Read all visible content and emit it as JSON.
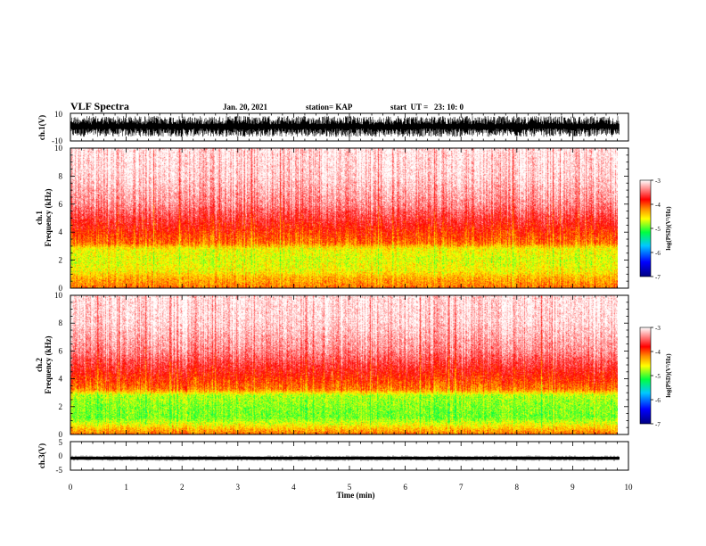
{
  "header": {
    "title": "VLF Spectra",
    "date": "Jan. 20, 2021",
    "station": "station= KAP",
    "start": "start  UT =   23: 10: 0"
  },
  "chart_data": [
    {
      "type": "line",
      "panel": "ch1-waveform",
      "ylabel": "ch.1(V)",
      "ylim": [
        -10,
        10
      ],
      "y_ticks": [
        "10",
        "-10"
      ],
      "x": [
        0,
        9.84
      ],
      "approx_envelope": [
        -7,
        8
      ],
      "color": "#000000"
    },
    {
      "type": "heatmap",
      "panel": "ch1-spectrogram",
      "ylabel": [
        "ch.1",
        "Frequency (kHz)"
      ],
      "ylim": [
        0,
        10
      ],
      "y_ticks": [
        "0",
        "2",
        "4",
        "6",
        "8",
        "10"
      ],
      "x_range": [
        0,
        9.84
      ],
      "level_profile_khz": [
        {
          "f": 0.0,
          "level": -4.1
        },
        {
          "f": 0.3,
          "level": -4.2
        },
        {
          "f": 0.7,
          "level": -4.3
        },
        {
          "f": 1.2,
          "level": -4.55
        },
        {
          "f": 2.0,
          "level": -4.65
        },
        {
          "f": 2.8,
          "level": -4.55
        },
        {
          "f": 3.2,
          "level": -4.1
        },
        {
          "f": 3.8,
          "level": -3.95
        },
        {
          "f": 4.5,
          "level": -3.75
        },
        {
          "f": 6.0,
          "level": -3.35
        },
        {
          "f": 8.0,
          "level": -3.1
        },
        {
          "f": 10.0,
          "level": -3.05
        }
      ],
      "colorbar": {
        "label": "log(PSD)(V²/Hz)",
        "range": [
          -7,
          -3
        ],
        "ticks": [
          "-3",
          "-4",
          "-5",
          "-6",
          "-7"
        ]
      }
    },
    {
      "type": "heatmap",
      "panel": "ch2-spectrogram",
      "ylabel": [
        "ch.2",
        "Frequency (kHz)"
      ],
      "ylim": [
        0,
        10
      ],
      "y_ticks": [
        "0",
        "2",
        "4",
        "6",
        "8",
        "10"
      ],
      "x_range": [
        0,
        9.84
      ],
      "level_profile_khz": [
        {
          "f": 0.0,
          "level": -4.1
        },
        {
          "f": 0.3,
          "level": -4.3
        },
        {
          "f": 0.7,
          "level": -4.6
        },
        {
          "f": 1.2,
          "level": -4.9
        },
        {
          "f": 2.0,
          "level": -4.85
        },
        {
          "f": 2.8,
          "level": -4.75
        },
        {
          "f": 3.2,
          "level": -4.15
        },
        {
          "f": 3.8,
          "level": -3.95
        },
        {
          "f": 4.5,
          "level": -3.75
        },
        {
          "f": 6.0,
          "level": -3.35
        },
        {
          "f": 8.0,
          "level": -3.1
        },
        {
          "f": 10.0,
          "level": -3.05
        }
      ],
      "colorbar": {
        "label": "log(PSD)(V²/Hz)",
        "range": [
          -7,
          -3
        ],
        "ticks": [
          "-3",
          "-4",
          "-5",
          "-6",
          "-7"
        ]
      }
    },
    {
      "type": "line",
      "panel": "ch3-waveform",
      "ylabel": "ch.3(V)",
      "ylim": [
        -5,
        5
      ],
      "y_ticks": [
        "5",
        "0",
        "-5"
      ],
      "x": [
        0,
        9.84
      ],
      "approx_level": -0.8,
      "color": "#000000"
    }
  ],
  "xaxis": {
    "label": "Time (min)",
    "range": [
      0,
      10
    ],
    "ticks": [
      "0",
      "1",
      "2",
      "3",
      "4",
      "5",
      "6",
      "7",
      "8",
      "9",
      "10"
    ]
  },
  "colors": {
    "scale": [
      "#000080",
      "#0000ff",
      "#00c8ff",
      "#00ff40",
      "#ffff00",
      "#ff9000",
      "#ff0000",
      "#ffffff"
    ]
  }
}
